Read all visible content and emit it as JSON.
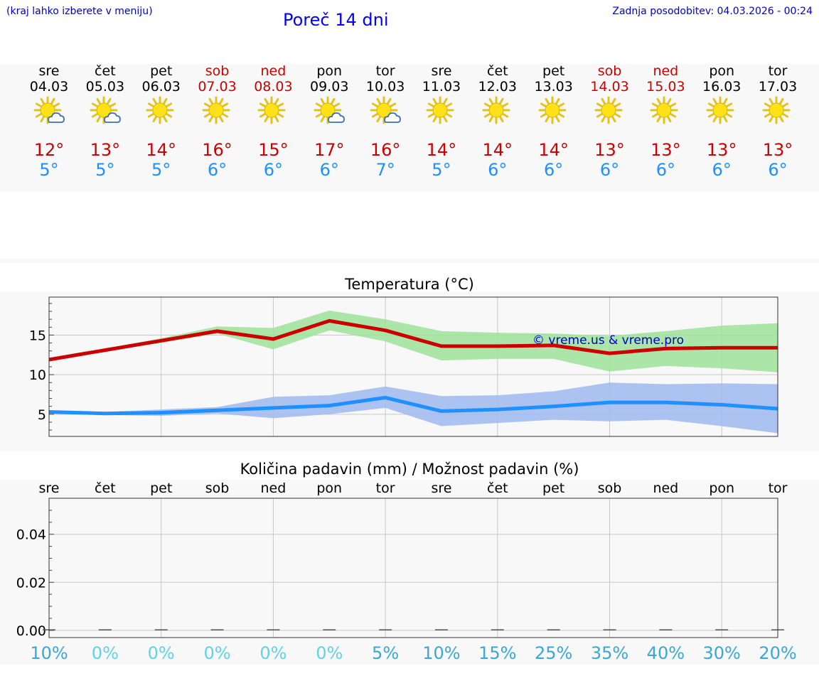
{
  "header": {
    "note": "(kraj lahko izberete v meniju)",
    "title": "Poreč 14 dni",
    "update": "Zadnja posodobitev: 04.03.2026 - 00:24"
  },
  "colors": {
    "max_temp": "#cc0000",
    "min_temp": "#1e90ff",
    "weekend": "#cc0000",
    "max_band": "#9ee29a",
    "min_band": "#9fb9ef",
    "watermark": "#0000cc",
    "rain_pct": "#39a7d8",
    "rain_pct_light": "#5fd3e6"
  },
  "days": [
    {
      "name": "sre",
      "date": "04.03",
      "weekend": false,
      "icon": "sun-cloud-icon",
      "max": "12°",
      "min": "5°"
    },
    {
      "name": "čet",
      "date": "05.03",
      "weekend": false,
      "icon": "sun-cloud-icon",
      "max": "13°",
      "min": "5°"
    },
    {
      "name": "pet",
      "date": "06.03",
      "weekend": false,
      "icon": "sun-icon",
      "max": "14°",
      "min": "5°"
    },
    {
      "name": "sob",
      "date": "07.03",
      "weekend": true,
      "icon": "sun-icon",
      "max": "16°",
      "min": "6°"
    },
    {
      "name": "ned",
      "date": "08.03",
      "weekend": true,
      "icon": "sun-icon",
      "max": "15°",
      "min": "6°"
    },
    {
      "name": "pon",
      "date": "09.03",
      "weekend": false,
      "icon": "sun-cloud-icon",
      "max": "17°",
      "min": "6°"
    },
    {
      "name": "tor",
      "date": "10.03",
      "weekend": false,
      "icon": "sun-cloud-icon",
      "max": "16°",
      "min": "7°"
    },
    {
      "name": "sre",
      "date": "11.03",
      "weekend": false,
      "icon": "sun-icon",
      "max": "14°",
      "min": "5°"
    },
    {
      "name": "čet",
      "date": "12.03",
      "weekend": false,
      "icon": "sun-icon",
      "max": "14°",
      "min": "6°"
    },
    {
      "name": "pet",
      "date": "13.03",
      "weekend": false,
      "icon": "sun-icon",
      "max": "14°",
      "min": "6°"
    },
    {
      "name": "sob",
      "date": "14.03",
      "weekend": true,
      "icon": "sun-icon",
      "max": "13°",
      "min": "6°"
    },
    {
      "name": "ned",
      "date": "15.03",
      "weekend": true,
      "icon": "sun-icon",
      "max": "13°",
      "min": "6°"
    },
    {
      "name": "pon",
      "date": "16.03",
      "weekend": false,
      "icon": "sun-icon",
      "max": "13°",
      "min": "6°"
    },
    {
      "name": "tor",
      "date": "17.03",
      "weekend": false,
      "icon": "sun-icon",
      "max": "13°",
      "min": "6°"
    }
  ],
  "chart_data": [
    {
      "type": "line",
      "title": "Temperatura (°C)",
      "xlabel": "",
      "ylabel": "",
      "ylim": [
        2.2,
        19.8
      ],
      "yticks": [
        5,
        10,
        15
      ],
      "grid": true,
      "watermark": "© vreme.us & vreme.pro",
      "x": [
        0,
        1,
        2,
        3,
        4,
        5,
        6,
        7,
        8,
        9,
        10,
        11,
        12,
        13
      ],
      "series": [
        {
          "name": "max",
          "values": [
            11.9,
            13.1,
            14.3,
            15.5,
            14.5,
            16.8,
            15.6,
            13.6,
            13.6,
            13.7,
            12.7,
            13.3,
            13.4,
            13.4
          ],
          "band_low": [
            11.9,
            13.0,
            14.0,
            15.2,
            13.2,
            15.6,
            14.2,
            11.8,
            12.0,
            12.0,
            10.4,
            11.1,
            10.8,
            10.3
          ],
          "band_high": [
            11.9,
            13.3,
            14.6,
            16.1,
            15.9,
            18.1,
            17.0,
            15.5,
            15.3,
            15.2,
            14.9,
            15.5,
            16.2,
            16.5
          ]
        },
        {
          "name": "min",
          "values": [
            5.3,
            5.1,
            5.2,
            5.5,
            5.8,
            6.1,
            7.1,
            5.4,
            5.6,
            6.0,
            6.5,
            6.5,
            6.2,
            5.7
          ],
          "band_low": [
            5.3,
            4.9,
            4.8,
            5.1,
            4.5,
            5.0,
            5.8,
            3.5,
            3.9,
            4.3,
            4.1,
            4.3,
            3.5,
            2.6
          ],
          "band_high": [
            5.3,
            5.3,
            5.6,
            5.9,
            7.2,
            7.4,
            8.5,
            7.3,
            7.4,
            7.9,
            9.0,
            8.8,
            8.9,
            8.8
          ]
        }
      ]
    },
    {
      "type": "bar",
      "title": "Količina padavin (mm) / Možnost padavin (%)",
      "categories": [
        "sre",
        "čet",
        "pet",
        "sob",
        "ned",
        "pon",
        "tor",
        "sre",
        "čet",
        "pet",
        "sob",
        "ned",
        "pon",
        "tor"
      ],
      "values": [
        0,
        0,
        0,
        0,
        0,
        0,
        0,
        0,
        0,
        0,
        0,
        0,
        0,
        0
      ],
      "ylim": [
        -0.003,
        0.055
      ],
      "yticks": [
        "0.00",
        "0.02",
        "0.04"
      ],
      "ytick_values": [
        0,
        0.02,
        0.04
      ],
      "grid": true,
      "chance": [
        "10%",
        "0%",
        "0%",
        "0%",
        "0%",
        "0%",
        "5%",
        "10%",
        "15%",
        "25%",
        "35%",
        "40%",
        "30%",
        "20%"
      ]
    }
  ]
}
